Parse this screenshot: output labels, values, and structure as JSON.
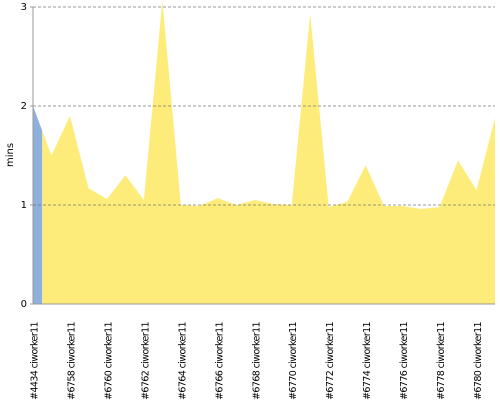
{
  "chart_data": {
    "type": "area",
    "y_label": "mins",
    "categories": [
      "#4434 ciworker11",
      null,
      "#6758 ciworker11",
      null,
      "#6760 ciworker11",
      null,
      "#6762 ciworker11",
      null,
      "#6764 ciworker11",
      null,
      "#6766 ciworker11",
      null,
      "#6768 ciworker11",
      null,
      "#6770 ciworker11",
      null,
      "#6772 ciworker11",
      null,
      "#6774 ciworker11",
      null,
      "#6776 ciworker11",
      null,
      "#6778 ciworker11",
      null,
      "#6780 ciworker11",
      null
    ],
    "series": [
      {
        "color": "#8eb0dc",
        "values": [
          2.0,
          null,
          null,
          null,
          null,
          null,
          null,
          null,
          null,
          null,
          null,
          null,
          null,
          null,
          null,
          null,
          null,
          null,
          null,
          null,
          null,
          null,
          null,
          null,
          null,
          null
        ]
      },
      {
        "color": "#fdec7a",
        "values": [
          null,
          1.5,
          1.9,
          1.17,
          1.06,
          1.3,
          1.05,
          3.07,
          1.0,
          0.99,
          1.07,
          1.0,
          1.05,
          1.01,
          1.0,
          2.93,
          0.98,
          1.03,
          1.4,
          0.99,
          0.99,
          0.96,
          0.98,
          1.45,
          1.15,
          1.88
        ]
      }
    ],
    "ylim": [
      0,
      3
    ],
    "yticks": [
      0,
      1,
      2,
      3
    ],
    "grid": true
  }
}
